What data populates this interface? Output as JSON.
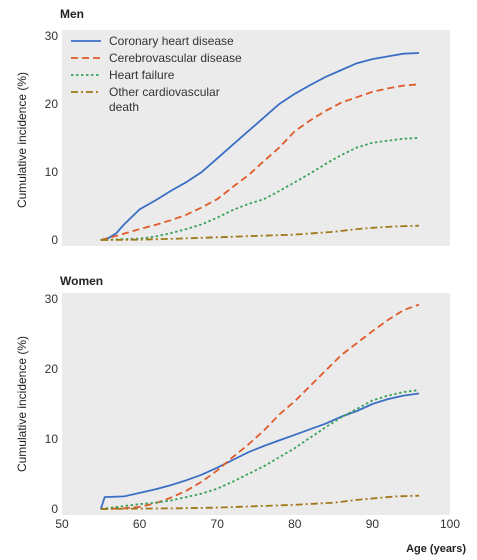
{
  "ylabel": "Cumulative incidence (%)",
  "xlabel": "Age (years)",
  "colors": {
    "background": "#ebebeb",
    "chd": "#3a6fc4",
    "cerebro": "#e05a2a",
    "hf": "#3aa05a",
    "other": "#a07818"
  },
  "chart_data": [
    {
      "type": "line",
      "title": "Men",
      "xlim": [
        50,
        100
      ],
      "ylim": [
        0,
        30
      ],
      "yticks": [
        0,
        10,
        20,
        30
      ],
      "legend_position": "top-left",
      "series": [
        {
          "name": "Coronary heart disease",
          "color": "#3a6fc4",
          "dash": "solid",
          "x": [
            55,
            56,
            57,
            58,
            60,
            62,
            64,
            66,
            68,
            70,
            72,
            74,
            76,
            78,
            80,
            82,
            84,
            86,
            88,
            90,
            92,
            94,
            96
          ],
          "y": [
            0,
            0.3,
            1.0,
            2.3,
            4.5,
            5.8,
            7.2,
            8.5,
            10.0,
            12.0,
            14.0,
            16.0,
            18.0,
            20.0,
            21.5,
            22.8,
            24.0,
            25.0,
            26.0,
            26.6,
            27.0,
            27.4,
            27.5
          ]
        },
        {
          "name": "Cerebrovascular disease",
          "color": "#e05a2a",
          "dash": "dashed",
          "x": [
            55,
            57,
            60,
            62,
            64,
            66,
            68,
            70,
            72,
            74,
            76,
            78,
            80,
            82,
            84,
            86,
            88,
            90,
            92,
            94,
            96
          ],
          "y": [
            0,
            0.6,
            1.6,
            2.2,
            2.9,
            3.7,
            4.8,
            6.0,
            7.8,
            9.5,
            11.6,
            13.6,
            16.0,
            17.6,
            19.0,
            20.2,
            21.0,
            21.8,
            22.3,
            22.7,
            22.9
          ]
        },
        {
          "name": "Heart failure",
          "color": "#3aa05a",
          "dash": "dotted",
          "x": [
            55,
            60,
            62,
            64,
            66,
            68,
            70,
            72,
            74,
            76,
            78,
            80,
            82,
            84,
            86,
            88,
            90,
            92,
            94,
            96
          ],
          "y": [
            0,
            0.2,
            0.5,
            1.0,
            1.6,
            2.3,
            3.3,
            4.4,
            5.3,
            6.0,
            7.2,
            8.5,
            9.8,
            11.2,
            12.5,
            13.6,
            14.3,
            14.6,
            14.9,
            15.0
          ]
        },
        {
          "name": "Other cardiovascular death",
          "color": "#a07818",
          "dash": "dashdot",
          "x": [
            55,
            60,
            65,
            70,
            75,
            80,
            85,
            88,
            90,
            93,
            96
          ],
          "y": [
            0,
            0.05,
            0.2,
            0.4,
            0.6,
            0.8,
            1.2,
            1.6,
            1.8,
            2.0,
            2.1
          ]
        }
      ]
    },
    {
      "type": "line",
      "title": "Women",
      "xlim": [
        50,
        100
      ],
      "ylim": [
        0,
        30
      ],
      "yticks": [
        0,
        10,
        20,
        30
      ],
      "xticks": [
        50,
        60,
        70,
        80,
        90,
        100
      ],
      "series": [
        {
          "name": "Coronary heart disease",
          "color": "#3a6fc4",
          "dash": "solid",
          "x": [
            55,
            55.5,
            58,
            60,
            62,
            64,
            66,
            68,
            70,
            72,
            74,
            76,
            78,
            80,
            82,
            84,
            86,
            88,
            90,
            92,
            94,
            96
          ],
          "y": [
            0,
            1.7,
            1.8,
            2.3,
            2.8,
            3.4,
            4.1,
            4.9,
            5.9,
            7.0,
            8.1,
            9.0,
            9.8,
            10.6,
            11.4,
            12.2,
            13.2,
            14.0,
            15.0,
            15.7,
            16.2,
            16.5
          ]
        },
        {
          "name": "Cerebrovascular disease",
          "color": "#e05a2a",
          "dash": "dashed",
          "x": [
            55,
            58,
            60,
            62,
            64,
            66,
            68,
            70,
            72,
            74,
            76,
            78,
            80,
            82,
            84,
            86,
            88,
            90,
            92,
            94,
            96
          ],
          "y": [
            0,
            0.1,
            0.3,
            0.8,
            1.6,
            2.6,
            3.9,
            5.5,
            7.4,
            9.2,
            11.2,
            13.5,
            15.4,
            17.6,
            19.8,
            22.0,
            23.7,
            25.4,
            27.0,
            28.4,
            29.2
          ]
        },
        {
          "name": "Heart failure",
          "color": "#3aa05a",
          "dash": "dotted",
          "x": [
            55,
            60,
            62,
            64,
            66,
            68,
            70,
            72,
            74,
            76,
            78,
            80,
            82,
            84,
            86,
            88,
            90,
            92,
            94,
            96
          ],
          "y": [
            0,
            0.7,
            0.9,
            1.2,
            1.7,
            2.2,
            2.9,
            3.9,
            5.0,
            6.1,
            7.4,
            8.7,
            10.2,
            11.7,
            13.1,
            14.3,
            15.5,
            16.2,
            16.7,
            17.0
          ]
        },
        {
          "name": "Other cardiovascular death",
          "color": "#a07818",
          "dash": "dashdot",
          "x": [
            55,
            60,
            65,
            70,
            75,
            80,
            85,
            88,
            90,
            93,
            96
          ],
          "y": [
            0,
            0.05,
            0.1,
            0.2,
            0.4,
            0.6,
            0.9,
            1.3,
            1.5,
            1.8,
            1.9
          ]
        }
      ]
    }
  ]
}
